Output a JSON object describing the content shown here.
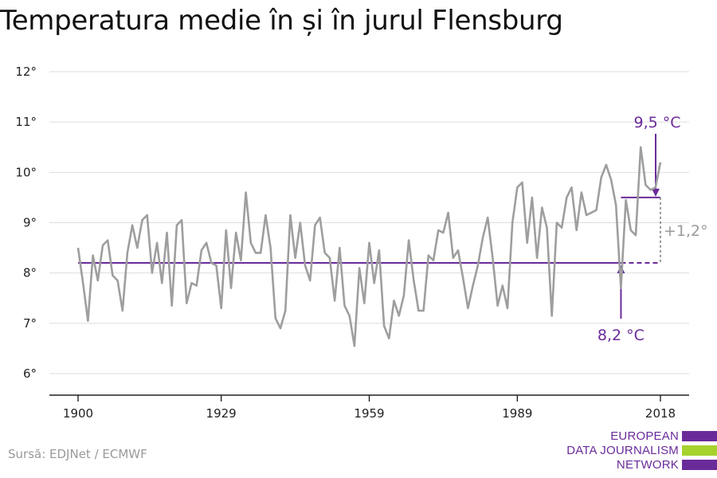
{
  "title": "Temperatura medie în și în jurul Flensburg",
  "source": "Sursă: EDJNet / ECMWF",
  "logo": {
    "lines": [
      "EUROPEAN",
      "DATA JOURNALISM",
      "NETWORK"
    ],
    "colors": {
      "purple": "#6a2b9a",
      "green": "#a6d22e"
    }
  },
  "colors": {
    "series": "#9e9e9e",
    "accent": "#6a2b9a",
    "grid": "#dddddd",
    "axis": "#222222"
  },
  "chart_data": {
    "type": "line",
    "title": "Temperatura medie în și în jurul Flensburg",
    "ylim": [
      6,
      12
    ],
    "xlim": [
      1900,
      2018
    ],
    "y_ticks": [
      6,
      7,
      8,
      9,
      10,
      11,
      12
    ],
    "y_tick_labels": [
      "6°",
      "7°",
      "8°",
      "9°",
      "10°",
      "11°",
      "12°"
    ],
    "x_ticks": [
      1900,
      1929,
      1959,
      1989,
      2018
    ],
    "x_tick_labels": [
      "1900",
      "1929",
      "1959",
      "1989",
      "2018"
    ],
    "grid": true,
    "series": [
      {
        "x": [
          1900,
          1901,
          1902,
          1903,
          1904,
          1905,
          1906,
          1907,
          1908,
          1909,
          1910,
          1911,
          1912,
          1913,
          1914,
          1915,
          1916,
          1917,
          1918,
          1919,
          1920,
          1921,
          1922,
          1923,
          1924,
          1925,
          1926,
          1927,
          1928,
          1929,
          1930,
          1931,
          1932,
          1933,
          1934,
          1935,
          1936,
          1937,
          1938,
          1939,
          1940,
          1941,
          1942,
          1943,
          1944,
          1945,
          1946,
          1947,
          1948,
          1949,
          1950,
          1951,
          1952,
          1953,
          1954,
          1955,
          1956,
          1957,
          1958,
          1959,
          1960,
          1961,
          1962,
          1963,
          1964,
          1965,
          1966,
          1967,
          1968,
          1969,
          1970,
          1971,
          1972,
          1973,
          1974,
          1975,
          1976,
          1977,
          1978,
          1979,
          1980,
          1981,
          1982,
          1983,
          1984,
          1985,
          1986,
          1987,
          1988,
          1989,
          1990,
          1991,
          1992,
          1993,
          1994,
          1995,
          1996,
          1997,
          1998,
          1999,
          2000,
          2001,
          2002,
          2003,
          2004,
          2005,
          2006,
          2007,
          2008,
          2009,
          2010,
          2011,
          2012,
          2013,
          2014,
          2015,
          2016,
          2017,
          2018
        ],
        "values": [
          8.5,
          7.8,
          7.05,
          8.35,
          7.85,
          8.55,
          8.65,
          7.95,
          7.85,
          7.25,
          8.4,
          8.95,
          8.5,
          9.05,
          9.15,
          8.0,
          8.6,
          7.8,
          8.8,
          7.35,
          8.95,
          9.05,
          7.4,
          7.8,
          7.75,
          8.45,
          8.6,
          8.2,
          8.15,
          7.3,
          8.85,
          7.7,
          8.8,
          8.25,
          9.6,
          8.6,
          8.4,
          8.4,
          9.15,
          8.5,
          7.1,
          6.9,
          7.25,
          9.15,
          8.3,
          9.0,
          8.15,
          7.85,
          8.95,
          9.1,
          8.4,
          8.3,
          7.45,
          8.5,
          7.35,
          7.15,
          6.55,
          8.1,
          7.4,
          8.6,
          7.8,
          8.45,
          6.95,
          6.7,
          7.45,
          7.15,
          7.55,
          8.65,
          7.85,
          7.25,
          7.25,
          8.35,
          8.25,
          8.85,
          8.8,
          9.2,
          8.3,
          8.45,
          7.9,
          7.3,
          7.75,
          8.15,
          8.7,
          9.1,
          8.3,
          7.35,
          7.75,
          7.3,
          9.0,
          9.7,
          9.8,
          8.6,
          9.5,
          8.3,
          9.3,
          8.9,
          7.15,
          9.0,
          8.9,
          9.5,
          9.7,
          8.85,
          9.6,
          9.15,
          9.2,
          9.25,
          9.9,
          10.15,
          9.85,
          9.35,
          7.7,
          9.45,
          8.85,
          8.75,
          10.5,
          9.75,
          9.65,
          9.7,
          10.2
        ]
      }
    ],
    "annotations": {
      "baseline": {
        "value": 8.2,
        "label": "8,2 °C",
        "from": 1900,
        "to": 2018,
        "dashed_from": 2010
      },
      "recent": {
        "value": 9.5,
        "label": "9,5 °C",
        "from": 2010,
        "to": 2018
      },
      "difference": {
        "label": "+1,2°"
      }
    }
  }
}
